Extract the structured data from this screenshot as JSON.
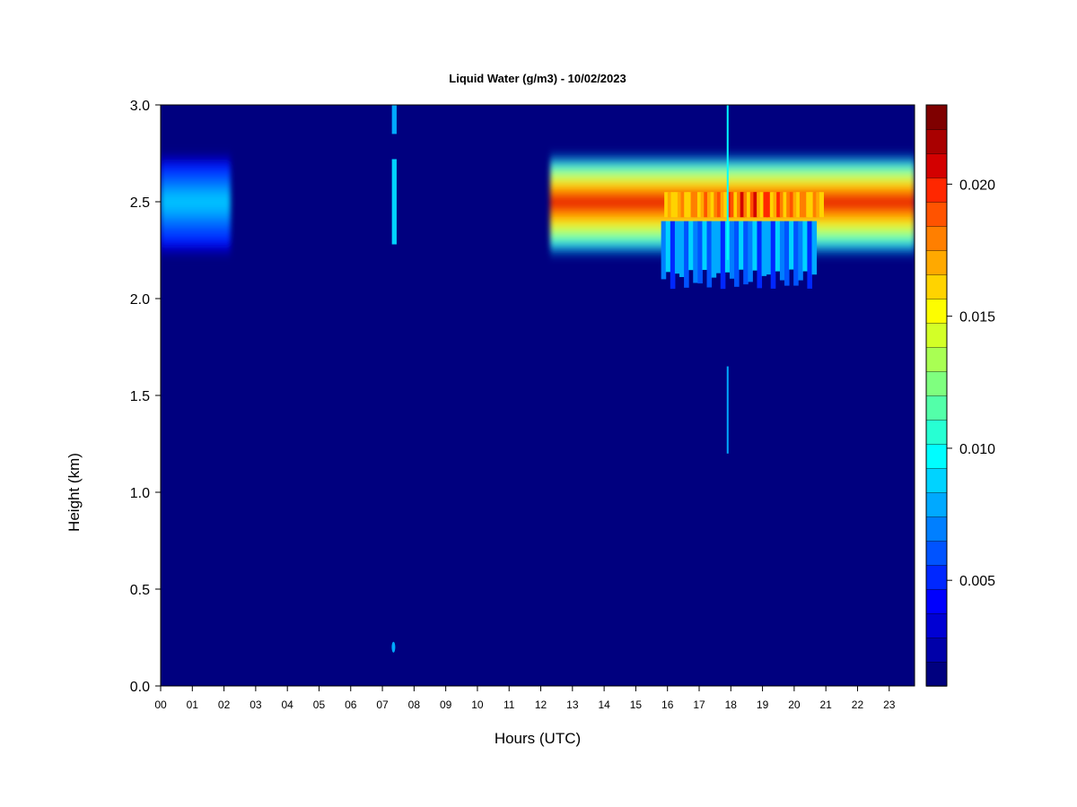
{
  "chart_data": {
    "type": "heatmap",
    "title": "Liquid Water (g/m3) - 10/02/2023",
    "xlabel": "Hours (UTC)",
    "ylabel": "Height (km)",
    "x_tick_labels": [
      "00",
      "01",
      "02",
      "03",
      "04",
      "05",
      "06",
      "07",
      "08",
      "09",
      "10",
      "11",
      "12",
      "13",
      "14",
      "15",
      "16",
      "17",
      "18",
      "19",
      "20",
      "21",
      "22",
      "23"
    ],
    "xlim": [
      0,
      23.8
    ],
    "ylim": [
      0,
      3.0
    ],
    "y_ticks": [
      "0.0",
      "0.5",
      "1.0",
      "1.5",
      "2.0",
      "2.5",
      "3.0"
    ],
    "colorbar": {
      "min": 0.001,
      "max": 0.023,
      "levels": 22,
      "tick_values": [
        0.005,
        0.01,
        0.015,
        0.02
      ],
      "tick_labels": [
        "0.005",
        "0.010",
        "0.015",
        "0.020"
      ],
      "colors": [
        "#00007f",
        "#0000a9",
        "#0000d3",
        "#0000fd",
        "#0027ff",
        "#0053ff",
        "#007fff",
        "#00a9ff",
        "#00d3ff",
        "#00fdff",
        "#27ffd3",
        "#53ffa9",
        "#7fff7f",
        "#a9ff53",
        "#d3ff27",
        "#fdfd00",
        "#ffd300",
        "#ffa900",
        "#ff7f00",
        "#ff5300",
        "#ff2700",
        "#d30000",
        "#a90000",
        "#7f0000"
      ]
    },
    "background_value": 0.0,
    "features": [
      {
        "label": "cloud layer 00-02 UTC",
        "x_range": [
          0.0,
          2.2
        ],
        "height_range": [
          2.25,
          2.72
        ],
        "peak_height": 2.5,
        "peak_value": 0.0085
      },
      {
        "label": "thin column ~07 UTC",
        "x_range": [
          7.3,
          7.45
        ],
        "height_range": [
          2.3,
          3.0
        ],
        "peak_value": 0.009
      },
      {
        "label": "spot ~07 UTC near surface",
        "x": 7.35,
        "height": 0.2,
        "peak_value": 0.008
      },
      {
        "label": "main cloud layer 12-24 UTC",
        "x_range": [
          12.3,
          23.8
        ],
        "height_range": [
          2.25,
          2.72
        ],
        "peak_height": 2.5,
        "peak_value": 0.021
      },
      {
        "label": "lower extension 15.8-21 UTC",
        "x_range": [
          15.8,
          20.7
        ],
        "height_range": [
          2.05,
          2.3
        ],
        "peak_value": 0.009
      },
      {
        "label": "vertical spike ~18 UTC",
        "x": 17.9,
        "height_range": [
          1.2,
          3.0
        ],
        "peak_value": 0.01
      }
    ]
  }
}
